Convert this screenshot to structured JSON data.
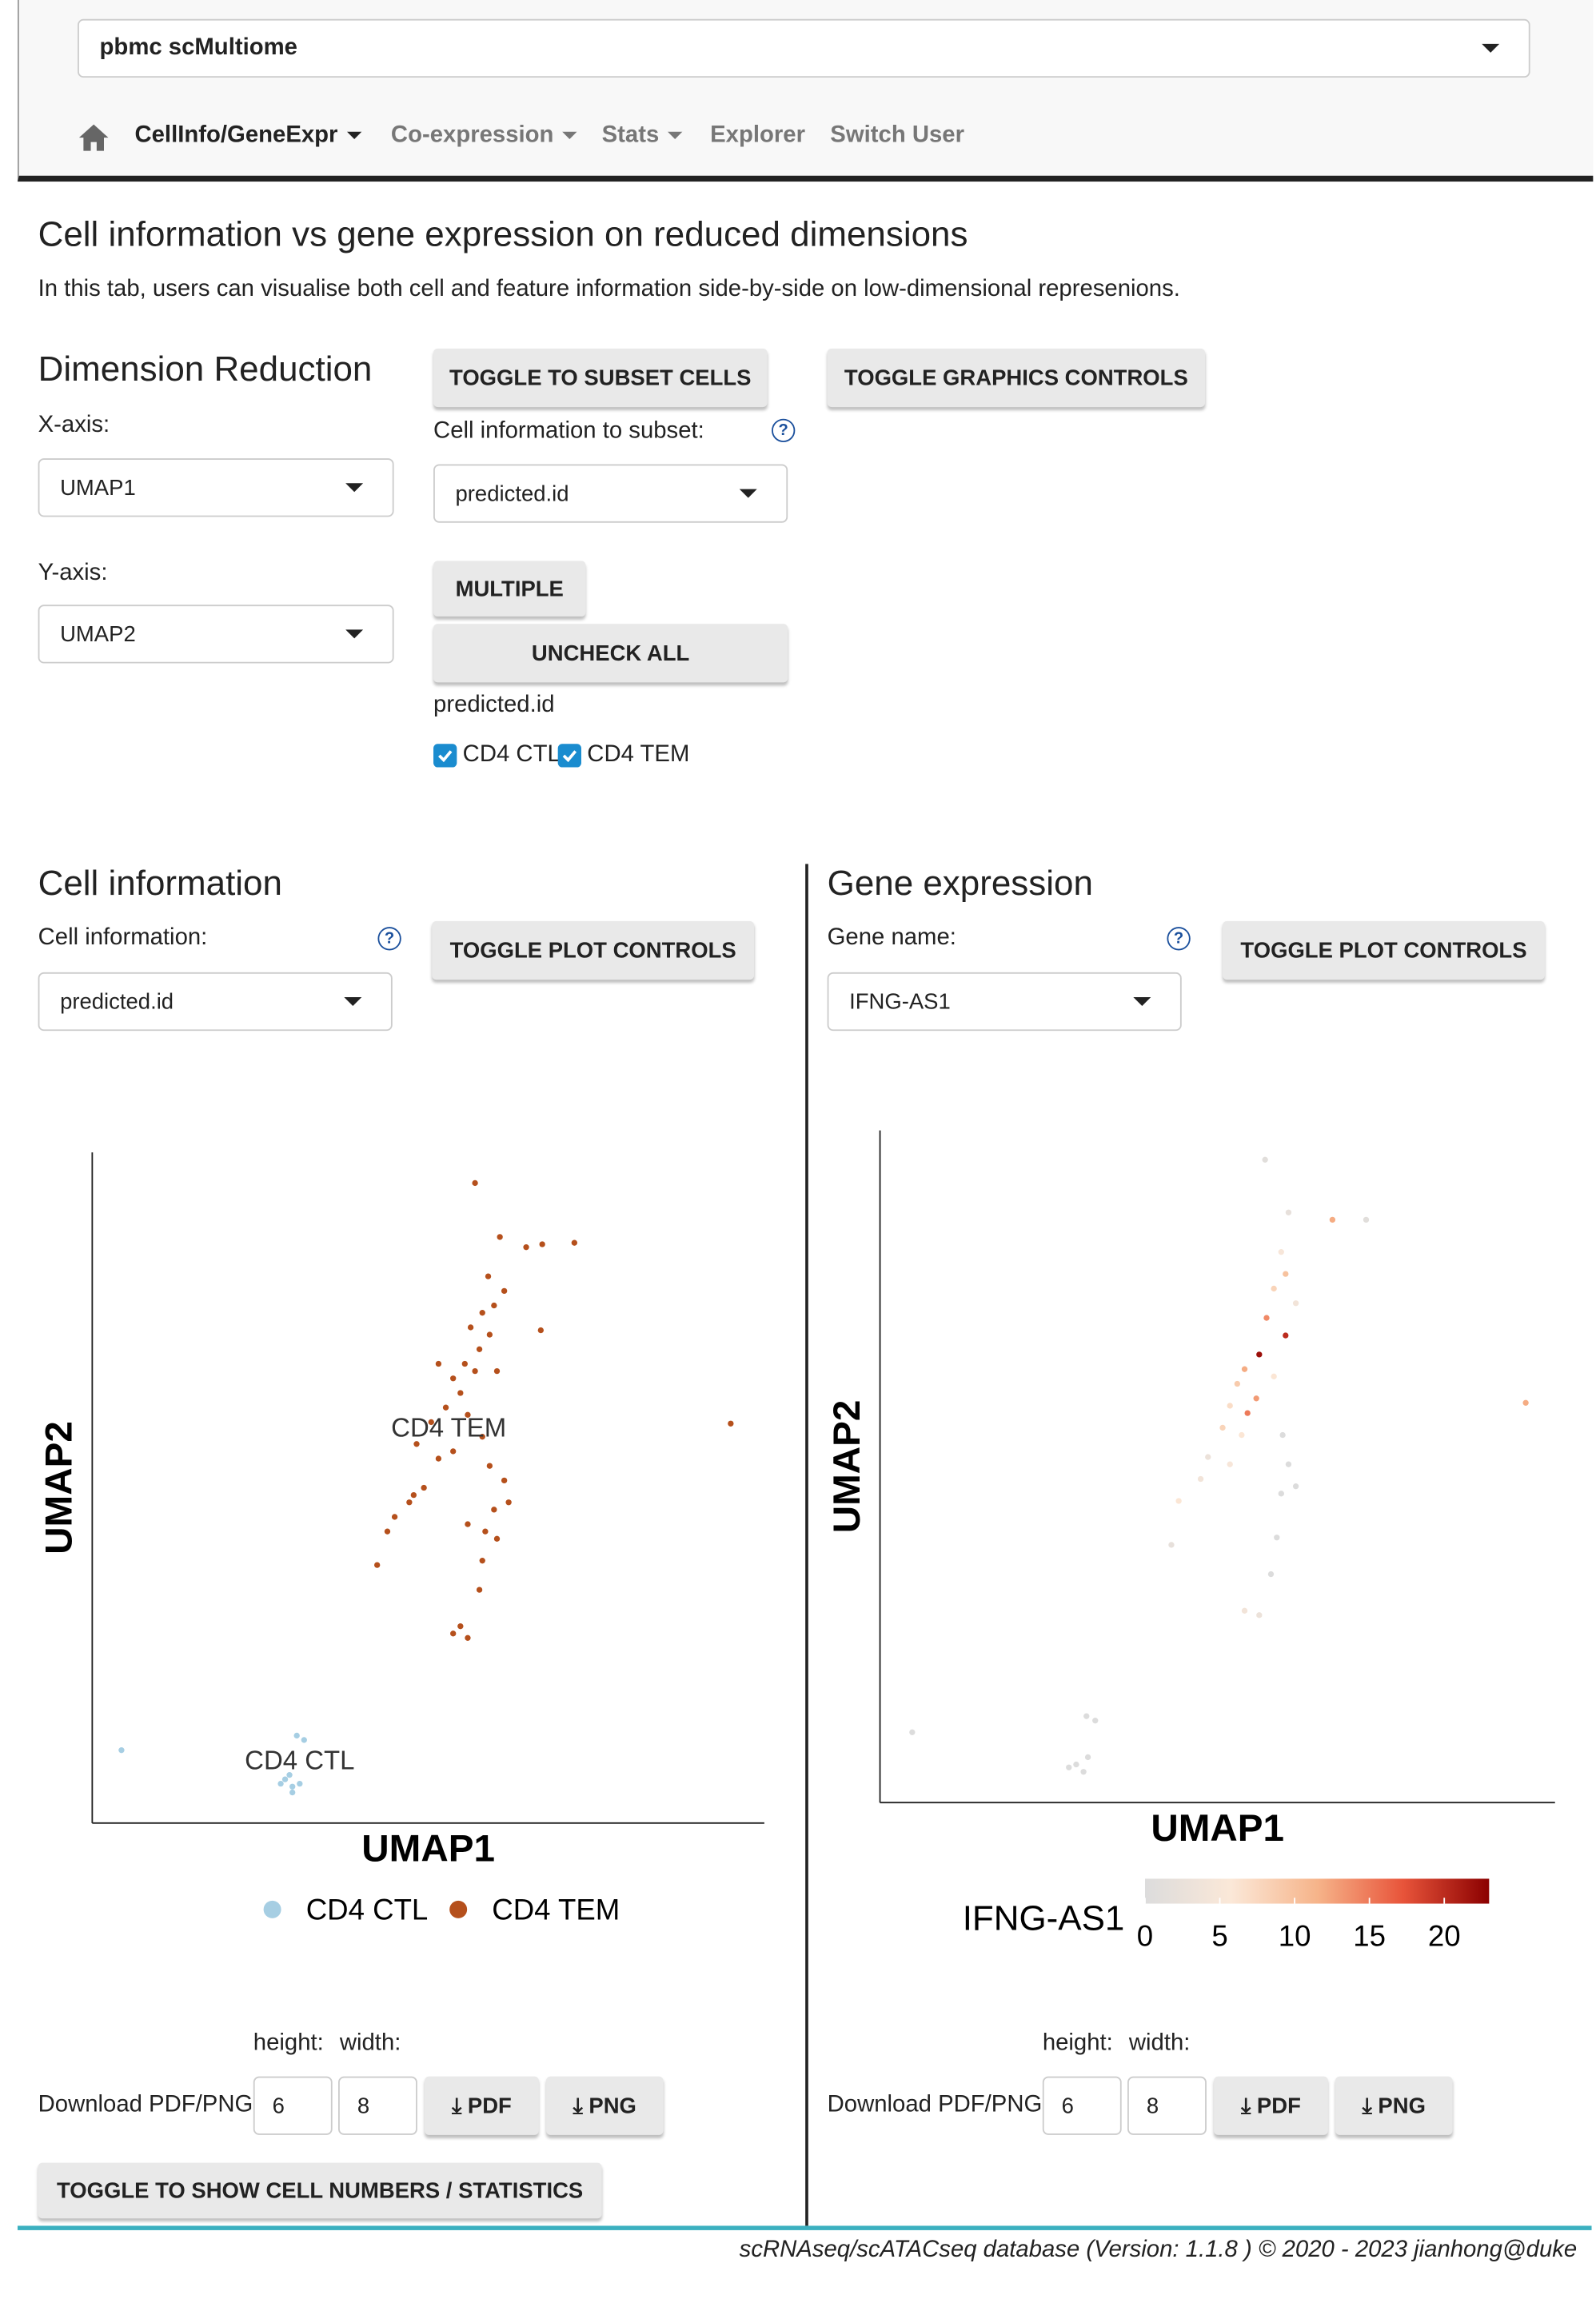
{
  "dataset_select": "pbmc scMultiome",
  "nav": [
    "CellInfo/GeneExpr",
    "Co-expression",
    "Stats",
    "Explorer",
    "Switch User"
  ],
  "page": {
    "title": "Cell information vs gene expression on reduced dimensions",
    "description": "In this tab, users can visualise both cell and feature information side-by-side on low-dimensional represenions."
  },
  "dimension_reduction": {
    "title": "Dimension Reduction",
    "x_label": "X-axis:",
    "x_value": "UMAP1",
    "y_label": "Y-axis:",
    "y_value": "UMAP2"
  },
  "subset": {
    "toggle": "TOGGLE TO SUBSET CELLS",
    "label": "Cell information to subset:",
    "value": "predicted.id",
    "multiple": "MULTIPLE",
    "uncheck": "UNCHECK ALL",
    "group_label": "predicted.id",
    "options": [
      "CD4 CTL",
      "CD4 TEM"
    ]
  },
  "graphics_toggle": "TOGGLE GRAPHICS CONTROLS",
  "cell_panel": {
    "title": "Cell information",
    "label": "Cell information:",
    "value": "predicted.id",
    "toggle": "TOGGLE PLOT CONTROLS",
    "height_label": "height:",
    "width_label": "width:",
    "download_label": "Download PDF/PNG",
    "height": 6,
    "width": 8,
    "pdf": "PDF",
    "png": "PNG",
    "stats_toggle": "TOGGLE TO SHOW CELL NUMBERS / STATISTICS"
  },
  "gene_panel": {
    "title": "Gene expression",
    "label": "Gene name:",
    "value": "IFNG-AS1",
    "toggle": "TOGGLE PLOT CONTROLS",
    "height_label": "height:",
    "width_label": "width:",
    "download_label": "Download PDF/PNG",
    "height": 6,
    "width": 8,
    "pdf": "PDF",
    "png": "PNG"
  },
  "chart_data": [
    {
      "type": "scatter",
      "xlabel": "UMAP1",
      "ylabel": "UMAP2",
      "xlim": [
        0,
        460
      ],
      "ylim": [
        0,
        460
      ],
      "series": [
        {
          "name": "CD4 CTL",
          "color": "#a6cee3",
          "x": [
            20,
            132,
            137,
            142,
            135,
            140,
            145,
            129,
            137
          ],
          "y": [
            50,
            30,
            25,
            27,
            33,
            60,
            57,
            27,
            21
          ]
        },
        {
          "name": "CD4 TEM",
          "color": "#b5501c",
          "x": [
            262,
            279,
            297,
            308,
            330,
            271,
            282,
            275,
            267,
            259,
            272,
            307,
            265,
            255,
            262,
            247,
            237,
            252,
            277,
            242,
            232,
            257,
            267,
            247,
            237,
            222,
            437,
            272,
            282,
            227,
            217,
            207,
            202,
            275,
            277,
            257,
            195,
            267,
            265,
            252,
            247,
            257,
            220,
            285,
            269
          ],
          "y": [
            439,
            402,
            395,
            397,
            398,
            375,
            365,
            355,
            350,
            340,
            335,
            338,
            325,
            315,
            310,
            305,
            315,
            295,
            310,
            285,
            275,
            280,
            265,
            255,
            250,
            260,
            274,
            245,
            235,
            230,
            220,
            210,
            200,
            215,
            195,
            205,
            177,
            180,
            160,
            135,
            130,
            127,
            225,
            220,
            200
          ]
        }
      ],
      "annotations": [
        {
          "text": "CD4 TEM",
          "x": 244,
          "y": 272
        },
        {
          "text": "CD4 CTL",
          "x": 142,
          "y": 44
        }
      ]
    },
    {
      "type": "scatter",
      "xlabel": "UMAP1",
      "ylabel": "UMAP2",
      "xlim": [
        0,
        461
      ],
      "ylim": [
        0,
        459
      ],
      "x": [
        263,
        279,
        309,
        332,
        274,
        277,
        269,
        284,
        264,
        277,
        259,
        249,
        269,
        244,
        257,
        239,
        251,
        234,
        247,
        441,
        275,
        279,
        239,
        224,
        219,
        204,
        274,
        284,
        199,
        271,
        267,
        249,
        259,
        22,
        141,
        147,
        134,
        139,
        142,
        129
      ],
      "y": [
        439,
        403,
        398,
        398,
        376,
        361,
        351,
        341,
        331,
        319,
        306,
        296,
        291,
        286,
        276,
        271,
        266,
        256,
        251,
        273,
        251,
        231,
        231,
        236,
        221,
        206,
        211,
        216,
        176,
        181,
        156,
        131,
        128,
        48,
        59,
        56,
        26,
        21,
        31,
        24
      ],
      "values": [
        1,
        2,
        12,
        1,
        5,
        10,
        8,
        4,
        14,
        20,
        22,
        12,
        6,
        9,
        13,
        7,
        15,
        8,
        6,
        12,
        0,
        0,
        5,
        3,
        4,
        6,
        0,
        0,
        2,
        0,
        0,
        4,
        3,
        0,
        0,
        0,
        0,
        0,
        0,
        0
      ],
      "colorbar_title": "IFNG-AS1",
      "clim": [
        0,
        23
      ],
      "cticks": [
        0,
        5,
        10,
        15,
        20
      ],
      "colors": [
        "#dcdcdc",
        "#fbe8d8",
        "#f6b48a",
        "#e8543a",
        "#8b0000"
      ]
    }
  ],
  "footer": "scRNAseq/scATACseq database (Version: 1.1.8 ) © 2020 - 2023 jianhong@duke"
}
